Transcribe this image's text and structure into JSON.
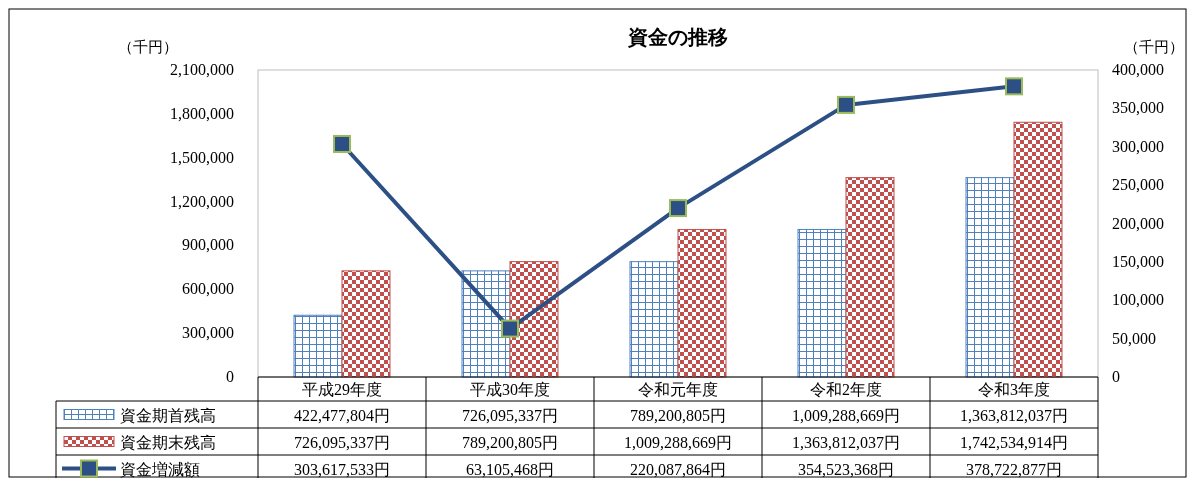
{
  "chart_data": {
    "type": "bar",
    "title": "資金の推移",
    "ylabel": "（千円）",
    "y2label": "（千円）",
    "categories": [
      "平成29年度",
      "平成30年度",
      "令和元年度",
      "令和2年度",
      "令和3年度"
    ],
    "series": [
      {
        "name": "資金期首残高",
        "color": "#4f81bd",
        "values": [
          422478,
          726095,
          789201,
          1009289,
          1363812
        ]
      },
      {
        "name": "資金期末残高",
        "color": "#c0504d",
        "values": [
          726095,
          789201,
          1009289,
          1363812,
          1742535
        ]
      },
      {
        "name": "資金増減額",
        "type": "line",
        "axis": "y2",
        "color": "#2c5085",
        "marker": "square",
        "values": [
          303618,
          63105,
          220088,
          354523,
          378723
        ]
      }
    ],
    "annotations": [
      "422,477,804円",
      "726,095,337円",
      "789,200,805円",
      "1,009,288,669円",
      "1,363,812,037円",
      "726,095,337円",
      "789,200,805円",
      "1,009,288,669円",
      "1,363,812,037円",
      "1,742,534,914円",
      "303,617,533円",
      "63,105,468円",
      "220,087,864円",
      "354,523,368円",
      "378,722,877円"
    ],
    "ylim": [
      0,
      2100000
    ],
    "yticks": [
      {
        "value": 0,
        "label": "0"
      },
      {
        "value": 300000,
        "label": "300,000"
      },
      {
        "value": 600000,
        "label": "600,000"
      },
      {
        "value": 900000,
        "label": "900,000"
      },
      {
        "value": 1200000,
        "label": "1,200,000"
      },
      {
        "value": 1500000,
        "label": "1,500,000"
      },
      {
        "value": 1800000,
        "label": "1,800,000"
      },
      {
        "value": 2100000,
        "label": "2,100,000"
      }
    ],
    "y2lim": [
      0,
      400000
    ],
    "y2ticks": [
      {
        "value": 0,
        "label": "0"
      },
      {
        "value": 50000,
        "label": "50,000"
      },
      {
        "value": 100000,
        "label": "100,000"
      },
      {
        "value": 150000,
        "label": "150,000"
      },
      {
        "value": 200000,
        "label": "200,000"
      },
      {
        "value": 250000,
        "label": "250,000"
      },
      {
        "value": 300000,
        "label": "300,000"
      },
      {
        "value": 350000,
        "label": "350,000"
      },
      {
        "value": 400000,
        "label": "400,000"
      }
    ],
    "grid": false,
    "legend": "bottom"
  }
}
